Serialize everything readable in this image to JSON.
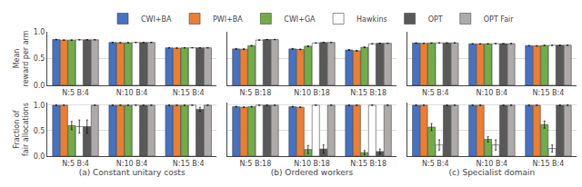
{
  "chart_data": [
    {
      "type": "bar",
      "legend": "top",
      "grid": true,
      "ylabel": "Mean\nreward per arm",
      "categories": [
        "N:5 B:4",
        "N:10 B:4",
        "N:15 B:4"
      ],
      "ylim": [
        0.0,
        1.0
      ],
      "yticks": [
        {
          "value": 0.0,
          "label": "0.0"
        },
        0.5,
        {
          "value": 1.0,
          "label": "1.0"
        }
      ],
      "series": [
        {
          "name": "CWI+BA",
          "color": "#4472c4",
          "values": [
            0.855,
            0.8,
            0.7
          ],
          "errors": [
            0.005,
            0.004,
            0.005
          ]
        },
        {
          "name": "PWI+BA",
          "color": "#ed7d31",
          "values": [
            0.845,
            0.795,
            0.695
          ],
          "errors": [
            0.005,
            0.004,
            0.005
          ]
        },
        {
          "name": "CWI+GA",
          "color": "#70ad47",
          "values": [
            0.845,
            0.795,
            0.7
          ],
          "errors": [
            0.005,
            0.004,
            0.005
          ]
        },
        {
          "name": "Hawkins",
          "color": "#ffffff",
          "values": [
            0.85,
            0.8,
            0.7
          ],
          "errors": [
            0.003,
            0.003,
            0.003
          ]
        },
        {
          "name": "OPT",
          "color": "#595959",
          "values": [
            0.85,
            0.8,
            0.7
          ],
          "errors": [
            0.003,
            0.003,
            0.003
          ]
        },
        {
          "name": "OPT Fair",
          "color": "#aeaaaa",
          "values": [
            0.85,
            0.8,
            0.7
          ],
          "errors": [
            0.003,
            0.003,
            0.003
          ]
        }
      ]
    },
    {
      "type": "bar",
      "grid": true,
      "tick_labels": "x",
      "categories": [
        "N:5 B:18",
        "N:10 B:18",
        "N:15 B:18"
      ],
      "ylim": [
        0.0,
        1.0
      ],
      "yticks": [
        {
          "value": 0.0,
          "label": "0.0"
        },
        0.5,
        {
          "value": 1.0,
          "label": "1.0"
        }
      ],
      "series": [
        {
          "name": "CWI+BA",
          "color": "#4472c4",
          "values": [
            0.68,
            0.68,
            0.66
          ],
          "errors": [
            0.008,
            0.008,
            0.008
          ]
        },
        {
          "name": "PWI+BA",
          "color": "#ed7d31",
          "values": [
            0.675,
            0.67,
            0.645
          ],
          "errors": [
            0.008,
            0.008,
            0.008
          ]
        },
        {
          "name": "CWI+GA",
          "color": "#70ad47",
          "values": [
            0.74,
            0.73,
            0.71
          ],
          "errors": [
            0.008,
            0.008,
            0.008
          ]
        },
        {
          "name": "Hawkins",
          "color": "#ffffff",
          "values": [
            0.845,
            0.79,
            0.775
          ],
          "errors": [
            0.005,
            0.004,
            0.004
          ]
        },
        {
          "name": "OPT",
          "color": "#595959",
          "values": [
            0.855,
            0.8,
            0.785
          ],
          "errors": [
            0.003,
            0.003,
            0.003
          ]
        },
        {
          "name": "OPT Fair",
          "color": "#aeaaaa",
          "values": [
            0.855,
            0.8,
            0.785
          ],
          "errors": [
            0.003,
            0.003,
            0.003
          ]
        }
      ]
    },
    {
      "type": "bar",
      "grid": true,
      "tick_labels": "x",
      "categories": [
        "N:5 B:4",
        "N:10 B:4",
        "N:15 B:4"
      ],
      "ylim": [
        0.0,
        1.0
      ],
      "yticks": [
        {
          "value": 0.0,
          "label": "0.0"
        },
        0.5,
        {
          "value": 1.0,
          "label": "1.0"
        }
      ],
      "series": [
        {
          "name": "CWI+BA",
          "color": "#4472c4",
          "values": [
            0.79,
            0.775,
            0.74
          ],
          "errors": [
            0.004,
            0.004,
            0.004
          ]
        },
        {
          "name": "PWI+BA",
          "color": "#ed7d31",
          "values": [
            0.785,
            0.773,
            0.735
          ],
          "errors": [
            0.004,
            0.004,
            0.004
          ]
        },
        {
          "name": "CWI+GA",
          "color": "#70ad47",
          "values": [
            0.79,
            0.775,
            0.745
          ],
          "errors": [
            0.004,
            0.004,
            0.004
          ]
        },
        {
          "name": "Hawkins",
          "color": "#ffffff",
          "values": [
            0.792,
            0.778,
            0.748
          ],
          "errors": [
            0.003,
            0.003,
            0.003
          ]
        },
        {
          "name": "OPT",
          "color": "#595959",
          "values": [
            0.792,
            0.778,
            0.748
          ],
          "errors": [
            0.003,
            0.003,
            0.003
          ]
        },
        {
          "name": "OPT Fair",
          "color": "#aeaaaa",
          "values": [
            0.792,
            0.778,
            0.748
          ],
          "errors": [
            0.003,
            0.003,
            0.003
          ]
        }
      ]
    },
    {
      "type": "bar",
      "grid": true,
      "ylabel": "Fraction of\nfair allocations",
      "xlabel": "(a) Constant unitary costs",
      "categories": [
        "N:5 B:4",
        "N:10 B:4",
        "N:15 B:4"
      ],
      "ylim": [
        0.0,
        1.05
      ],
      "yticks": [
        {
          "value": 0.0,
          "label": "0.0"
        },
        0.5,
        {
          "value": 1.0,
          "label": "1.0"
        }
      ],
      "series": [
        {
          "name": "CWI+BA",
          "color": "#4472c4",
          "values": [
            1.0,
            1.0,
            1.0
          ],
          "errors": [
            0.003,
            0.003,
            0.003
          ]
        },
        {
          "name": "PWI+BA",
          "color": "#ed7d31",
          "values": [
            1.0,
            1.0,
            1.0
          ],
          "errors": [
            0.003,
            0.003,
            0.003
          ]
        },
        {
          "name": "CWI+GA",
          "color": "#70ad47",
          "values": [
            0.6,
            1.0,
            1.0
          ],
          "errors": [
            0.08,
            0.003,
            0.003
          ]
        },
        {
          "name": "Hawkins",
          "color": "#ffffff",
          "values": [
            0.58,
            1.0,
            1.0
          ],
          "errors": [
            0.13,
            0.003,
            0.003
          ]
        },
        {
          "name": "OPT",
          "color": "#595959",
          "values": [
            0.58,
            1.0,
            0.92
          ],
          "errors": [
            0.13,
            0.003,
            0.04
          ]
        },
        {
          "name": "OPT Fair",
          "color": "#aeaaaa",
          "values": [
            1.0,
            1.0,
            1.0
          ],
          "errors": [
            0.003,
            0.003,
            0.003
          ]
        }
      ]
    },
    {
      "type": "bar",
      "grid": true,
      "tick_labels": "x",
      "xlabel": "(b) Ordered workers",
      "categories": [
        "N:5 B:18",
        "N:10 B:18",
        "N:15 B:18"
      ],
      "ylim": [
        0.0,
        1.05
      ],
      "yticks": [
        {
          "value": 0.0,
          "label": "0.0"
        },
        0.5,
        {
          "value": 1.0,
          "label": "1.0"
        }
      ],
      "series": [
        {
          "name": "CWI+BA",
          "color": "#4472c4",
          "values": [
            0.97,
            0.97,
            1.0
          ],
          "errors": [
            0.008,
            0.008,
            0.003
          ]
        },
        {
          "name": "PWI+BA",
          "color": "#ed7d31",
          "values": [
            0.96,
            0.96,
            1.0
          ],
          "errors": [
            0.008,
            0.008,
            0.003
          ]
        },
        {
          "name": "CWI+GA",
          "color": "#70ad47",
          "values": [
            0.97,
            0.13,
            0.07
          ],
          "errors": [
            0.008,
            0.08,
            0.04
          ]
        },
        {
          "name": "Hawkins",
          "color": "#ffffff",
          "values": [
            1.0,
            1.0,
            1.0
          ],
          "errors": [
            0.003,
            0.003,
            0.003
          ]
        },
        {
          "name": "OPT",
          "color": "#595959",
          "values": [
            1.0,
            0.14,
            0.09
          ],
          "errors": [
            0.003,
            0.08,
            0.05
          ]
        },
        {
          "name": "OPT Fair",
          "color": "#aeaaaa",
          "values": [
            1.0,
            1.0,
            1.0
          ],
          "errors": [
            0.003,
            0.003,
            0.003
          ]
        }
      ]
    },
    {
      "type": "bar",
      "grid": true,
      "tick_labels": "x",
      "xlabel": "(c) Specialist domain",
      "categories": [
        "N:5 B:4",
        "N:10 B:4",
        "N:15 B:4"
      ],
      "ylim": [
        0.0,
        1.05
      ],
      "yticks": [
        {
          "value": 0.0,
          "label": "0.0"
        },
        0.5,
        {
          "value": 1.0,
          "label": "1.0"
        }
      ],
      "series": [
        {
          "name": "CWI+BA",
          "color": "#4472c4",
          "values": [
            1.0,
            1.0,
            1.0
          ],
          "errors": [
            0.003,
            0.003,
            0.003
          ]
        },
        {
          "name": "PWI+BA",
          "color": "#ed7d31",
          "values": [
            1.0,
            1.0,
            1.0
          ],
          "errors": [
            0.003,
            0.003,
            0.003
          ]
        },
        {
          "name": "CWI+GA",
          "color": "#70ad47",
          "values": [
            0.57,
            0.33,
            0.62
          ],
          "errors": [
            0.07,
            0.05,
            0.07
          ]
        },
        {
          "name": "Hawkins",
          "color": "#ffffff",
          "values": [
            0.22,
            0.22,
            0.15
          ],
          "errors": [
            0.1,
            0.1,
            0.07
          ]
        },
        {
          "name": "OPT",
          "color": "#595959",
          "values": [
            1.0,
            1.0,
            1.0
          ],
          "errors": [
            0.003,
            0.003,
            0.003
          ]
        },
        {
          "name": "OPT Fair",
          "color": "#aeaaaa",
          "values": [
            1.0,
            1.0,
            1.0
          ],
          "errors": [
            0.003,
            0.003,
            0.003
          ]
        }
      ]
    }
  ]
}
